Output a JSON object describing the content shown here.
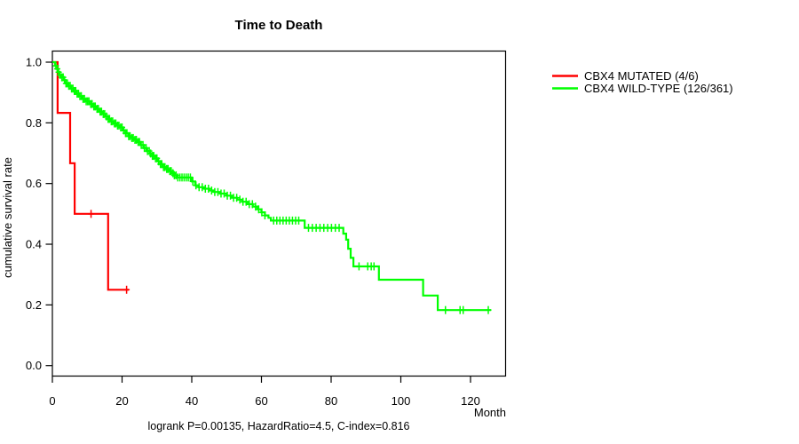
{
  "chart": {
    "title": "Time to Death",
    "y_label": "cumulative survival rate",
    "x_unit": "Month",
    "footer": "logrank P=0.00135, HazardRatio=4.5, C-index=0.816"
  },
  "legend": {
    "items": [
      {
        "label": "CBX4 MUTATED (4/6)",
        "color": "#ff0000"
      },
      {
        "label": "CBX4 WILD-TYPE (126/361)",
        "color": "#00ff00"
      }
    ]
  },
  "chart_data": {
    "type": "line",
    "subtype": "kaplan-meier-step",
    "title": "Time to Death",
    "xlabel": "Month",
    "ylabel": "cumulative survival rate",
    "xlim": [
      0,
      130
    ],
    "ylim": [
      0,
      1
    ],
    "x_ticks": [
      0,
      20,
      40,
      60,
      80,
      100,
      120
    ],
    "y_ticks": [
      0.0,
      0.2,
      0.4,
      0.6,
      0.8,
      1.0
    ],
    "y_tick_labels": [
      "0.0",
      "0.2",
      "0.4",
      "0.6",
      "0.8",
      "1.0"
    ],
    "grid": false,
    "legend_position": "right-outside",
    "annotation": "logrank P=0.00135, HazardRatio=4.5, C-index=0.816",
    "series": [
      {
        "name": "CBX4 MUTATED (4/6)",
        "color": "#ff0000",
        "steps": [
          [
            0,
            1.0
          ],
          [
            1.5,
            0.833
          ],
          [
            5.1,
            0.667
          ],
          [
            6.4,
            0.5
          ],
          [
            16.0,
            0.25
          ]
        ],
        "end_month": 21.9,
        "censor_months": [
          11.1,
          21.3
        ]
      },
      {
        "name": "CBX4 WILD-TYPE (126/361)",
        "color": "#00ff00",
        "steps": [
          [
            0,
            1.0
          ],
          [
            0.8,
            0.988
          ],
          [
            1.2,
            0.978
          ],
          [
            1.6,
            0.967
          ],
          [
            2.0,
            0.958
          ],
          [
            2.6,
            0.95
          ],
          [
            3.2,
            0.941
          ],
          [
            3.8,
            0.93
          ],
          [
            4.4,
            0.922
          ],
          [
            5.2,
            0.913
          ],
          [
            6.0,
            0.905
          ],
          [
            6.8,
            0.896
          ],
          [
            7.6,
            0.888
          ],
          [
            8.6,
            0.879
          ],
          [
            9.6,
            0.871
          ],
          [
            10.6,
            0.862
          ],
          [
            11.7,
            0.854
          ],
          [
            12.6,
            0.846
          ],
          [
            13.5,
            0.837
          ],
          [
            14.3,
            0.829
          ],
          [
            15.2,
            0.821
          ],
          [
            16.0,
            0.813
          ],
          [
            16.8,
            0.805
          ],
          [
            17.7,
            0.798
          ],
          [
            18.6,
            0.791
          ],
          [
            19.4,
            0.785
          ],
          [
            20.2,
            0.775
          ],
          [
            21.0,
            0.766
          ],
          [
            21.9,
            0.756
          ],
          [
            22.8,
            0.75
          ],
          [
            23.6,
            0.744
          ],
          [
            24.5,
            0.737
          ],
          [
            25.3,
            0.727
          ],
          [
            26.2,
            0.717
          ],
          [
            27.0,
            0.707
          ],
          [
            27.9,
            0.699
          ],
          [
            28.7,
            0.691
          ],
          [
            29.6,
            0.683
          ],
          [
            30.3,
            0.673
          ],
          [
            31.0,
            0.664
          ],
          [
            31.7,
            0.654
          ],
          [
            32.5,
            0.648
          ],
          [
            33.4,
            0.641
          ],
          [
            34.2,
            0.634
          ],
          [
            35.0,
            0.627
          ],
          [
            35.9,
            0.62
          ],
          [
            40.0,
            0.607
          ],
          [
            41.0,
            0.594
          ],
          [
            42.0,
            0.588
          ],
          [
            43.6,
            0.583
          ],
          [
            45.0,
            0.577
          ],
          [
            46.5,
            0.572
          ],
          [
            48.2,
            0.567
          ],
          [
            50.0,
            0.56
          ],
          [
            51.5,
            0.553
          ],
          [
            53.0,
            0.547
          ],
          [
            54.5,
            0.54
          ],
          [
            56.0,
            0.532
          ],
          [
            57.5,
            0.524
          ],
          [
            58.8,
            0.515
          ],
          [
            60.0,
            0.505
          ],
          [
            61.0,
            0.495
          ],
          [
            62.0,
            0.487
          ],
          [
            62.7,
            0.478
          ],
          [
            72.4,
            0.454
          ],
          [
            83.5,
            0.435
          ],
          [
            84.3,
            0.415
          ],
          [
            84.9,
            0.385
          ],
          [
            85.6,
            0.355
          ],
          [
            86.4,
            0.327
          ],
          [
            93.7,
            0.283
          ],
          [
            106.4,
            0.231
          ],
          [
            110.6,
            0.183
          ]
        ],
        "end_month": 125.9,
        "censor_months": [
          1.0,
          1.4,
          1.8,
          2.2,
          2.7,
          3.1,
          3.5,
          3.9,
          4.3,
          4.7,
          5.1,
          5.5,
          5.9,
          6.3,
          6.7,
          7.1,
          7.5,
          7.9,
          8.3,
          8.8,
          9.2,
          9.7,
          10.1,
          10.5,
          11.0,
          11.4,
          11.9,
          12.3,
          12.8,
          13.2,
          13.7,
          14.1,
          14.6,
          15.0,
          15.5,
          16.0,
          16.4,
          16.9,
          17.3,
          17.8,
          18.2,
          18.7,
          19.1,
          19.6,
          20.0,
          20.5,
          21.0,
          21.4,
          21.9,
          22.3,
          22.8,
          23.2,
          23.7,
          24.1,
          24.6,
          25.0,
          25.5,
          26.0,
          26.4,
          26.9,
          27.3,
          27.8,
          28.2,
          28.7,
          29.1,
          29.6,
          30.0,
          30.5,
          31.0,
          31.4,
          31.9,
          32.3,
          32.8,
          33.2,
          33.7,
          34.1,
          34.6,
          35.0,
          35.5,
          36.0,
          36.6,
          37.2,
          37.8,
          38.4,
          39.0,
          39.6,
          40.3,
          41.2,
          42.1,
          43.0,
          43.9,
          44.8,
          45.7,
          46.6,
          47.5,
          48.4,
          49.3,
          50.2,
          51.1,
          52.0,
          52.9,
          53.8,
          54.7,
          55.6,
          56.5,
          57.4,
          58.3,
          59.2,
          60.1,
          61.0,
          63.5,
          64.4,
          65.3,
          66.2,
          67.1,
          68.0,
          68.9,
          69.8,
          70.7,
          73.5,
          74.6,
          75.7,
          76.8,
          77.9,
          79.0,
          80.1,
          81.2,
          82.3,
          88.0,
          90.5,
          91.5,
          92.3,
          112.8,
          117.0,
          117.9,
          125.1
        ]
      }
    ]
  }
}
